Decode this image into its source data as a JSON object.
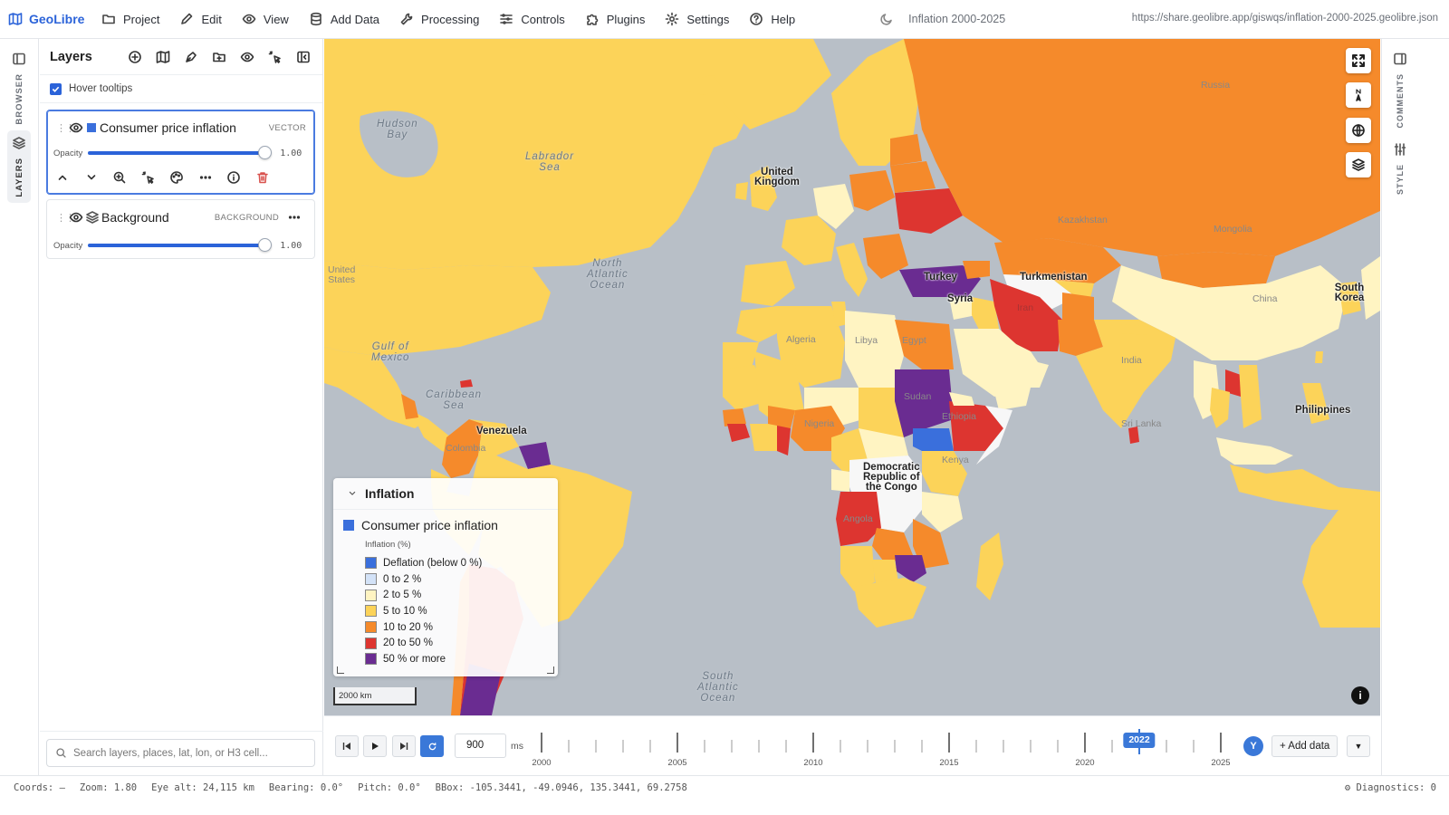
{
  "app": {
    "name": "GeoLibre"
  },
  "menu": {
    "items": [
      {
        "id": "project",
        "label": "Project"
      },
      {
        "id": "edit",
        "label": "Edit"
      },
      {
        "id": "view",
        "label": "View"
      },
      {
        "id": "add-data",
        "label": "Add Data"
      },
      {
        "id": "processing",
        "label": "Processing"
      },
      {
        "id": "controls",
        "label": "Controls"
      },
      {
        "id": "plugins",
        "label": "Plugins"
      },
      {
        "id": "settings",
        "label": "Settings"
      },
      {
        "id": "help",
        "label": "Help"
      }
    ],
    "document_title": "Inflation 2000-2025",
    "share_url": "https://share.geolibre.app/giswqs/inflation-2000-2025.geolibre.json"
  },
  "left_rail": {
    "browser": "BROWSER",
    "layers": "LAYERS"
  },
  "right_rail": {
    "comments": "COMMENTS",
    "style": "STYLE"
  },
  "layers_panel": {
    "title": "Layers",
    "hover_tooltips": {
      "label": "Hover tooltips",
      "checked": true
    },
    "layers": [
      {
        "name": "Consumer price inflation",
        "type": "VECTOR",
        "opacity_label": "Opacity",
        "opacity": "1.00",
        "swatch": "#3a6fdc"
      },
      {
        "name": "Background",
        "type": "BACKGROUND",
        "opacity_label": "Opacity",
        "opacity": "1.00"
      }
    ],
    "search_placeholder": "Search layers, places, lat, lon, or H3 cell..."
  },
  "map": {
    "ocean_labels": [
      {
        "text": "Hudson\nBay"
      },
      {
        "text": "Labrador\nSea"
      },
      {
        "text": "North\nAtlantic\nOcean"
      },
      {
        "text": "Gulf of\nMexico"
      },
      {
        "text": "Caribbean\nSea"
      },
      {
        "text": "South\nAtlantic\nOcean"
      }
    ],
    "country_labels": [
      {
        "text": "United\nKingdom"
      },
      {
        "text": "Turkey"
      },
      {
        "text": "Syria"
      },
      {
        "text": "Turkmenistan"
      },
      {
        "text": "Iran"
      },
      {
        "text": "Egypt"
      },
      {
        "text": "Sudan"
      },
      {
        "text": "Ethiopia"
      },
      {
        "text": "Venezuela"
      },
      {
        "text": "Colombia"
      },
      {
        "text": "Nigeria"
      },
      {
        "text": "Democratic\nRepublic of\nthe Congo"
      },
      {
        "text": "Angola"
      },
      {
        "text": "Sri Lanka"
      },
      {
        "text": "Philippines"
      },
      {
        "text": "South Korea"
      },
      {
        "text": "Russia"
      },
      {
        "text": "Kazakhstan"
      },
      {
        "text": "India"
      },
      {
        "text": "China"
      },
      {
        "text": "United\nStates"
      },
      {
        "text": "Algeria"
      },
      {
        "text": "Libya"
      },
      {
        "text": "Kenya"
      },
      {
        "text": "Mongolia"
      }
    ],
    "scale": "2000 km",
    "info": "i"
  },
  "legend": {
    "title": "Inflation",
    "layer_name": "Consumer price inflation",
    "subtitle": "Inflation (%)",
    "items": [
      {
        "label": "Deflation (below 0 %)",
        "color": "#3a6fdc"
      },
      {
        "label": "0 to 2 %",
        "color": "#d3e2f7"
      },
      {
        "label": "2 to 5 %",
        "color": "#fff4c2"
      },
      {
        "label": "5 to 10 %",
        "color": "#fcd359"
      },
      {
        "label": "10 to 20 %",
        "color": "#f58a2b"
      },
      {
        "label": "20 to 50 %",
        "color": "#dd3530"
      },
      {
        "label": "50 % or more",
        "color": "#6a2c91"
      }
    ]
  },
  "timeline": {
    "speed": "900",
    "speed_unit": "ms",
    "start_year": 2000,
    "end_year": 2025,
    "current_year": "2022",
    "year_labels": [
      "2000",
      "2005",
      "2010",
      "2015",
      "2020",
      "2025"
    ],
    "avatar": "Y",
    "add_data_label": "+ Add data",
    "add_data_menu": "▼"
  },
  "status": {
    "coords": "Coords: —",
    "zoom": "Zoom: 1.80",
    "eye_alt": "Eye alt: 24,115 km",
    "bearing": "Bearing: 0.0°",
    "pitch": "Pitch: 0.0°",
    "bbox": "BBox: -105.3441, -49.0946, 135.3441, 69.2758",
    "diagnostics": "⚙ Diagnostics: 0"
  }
}
